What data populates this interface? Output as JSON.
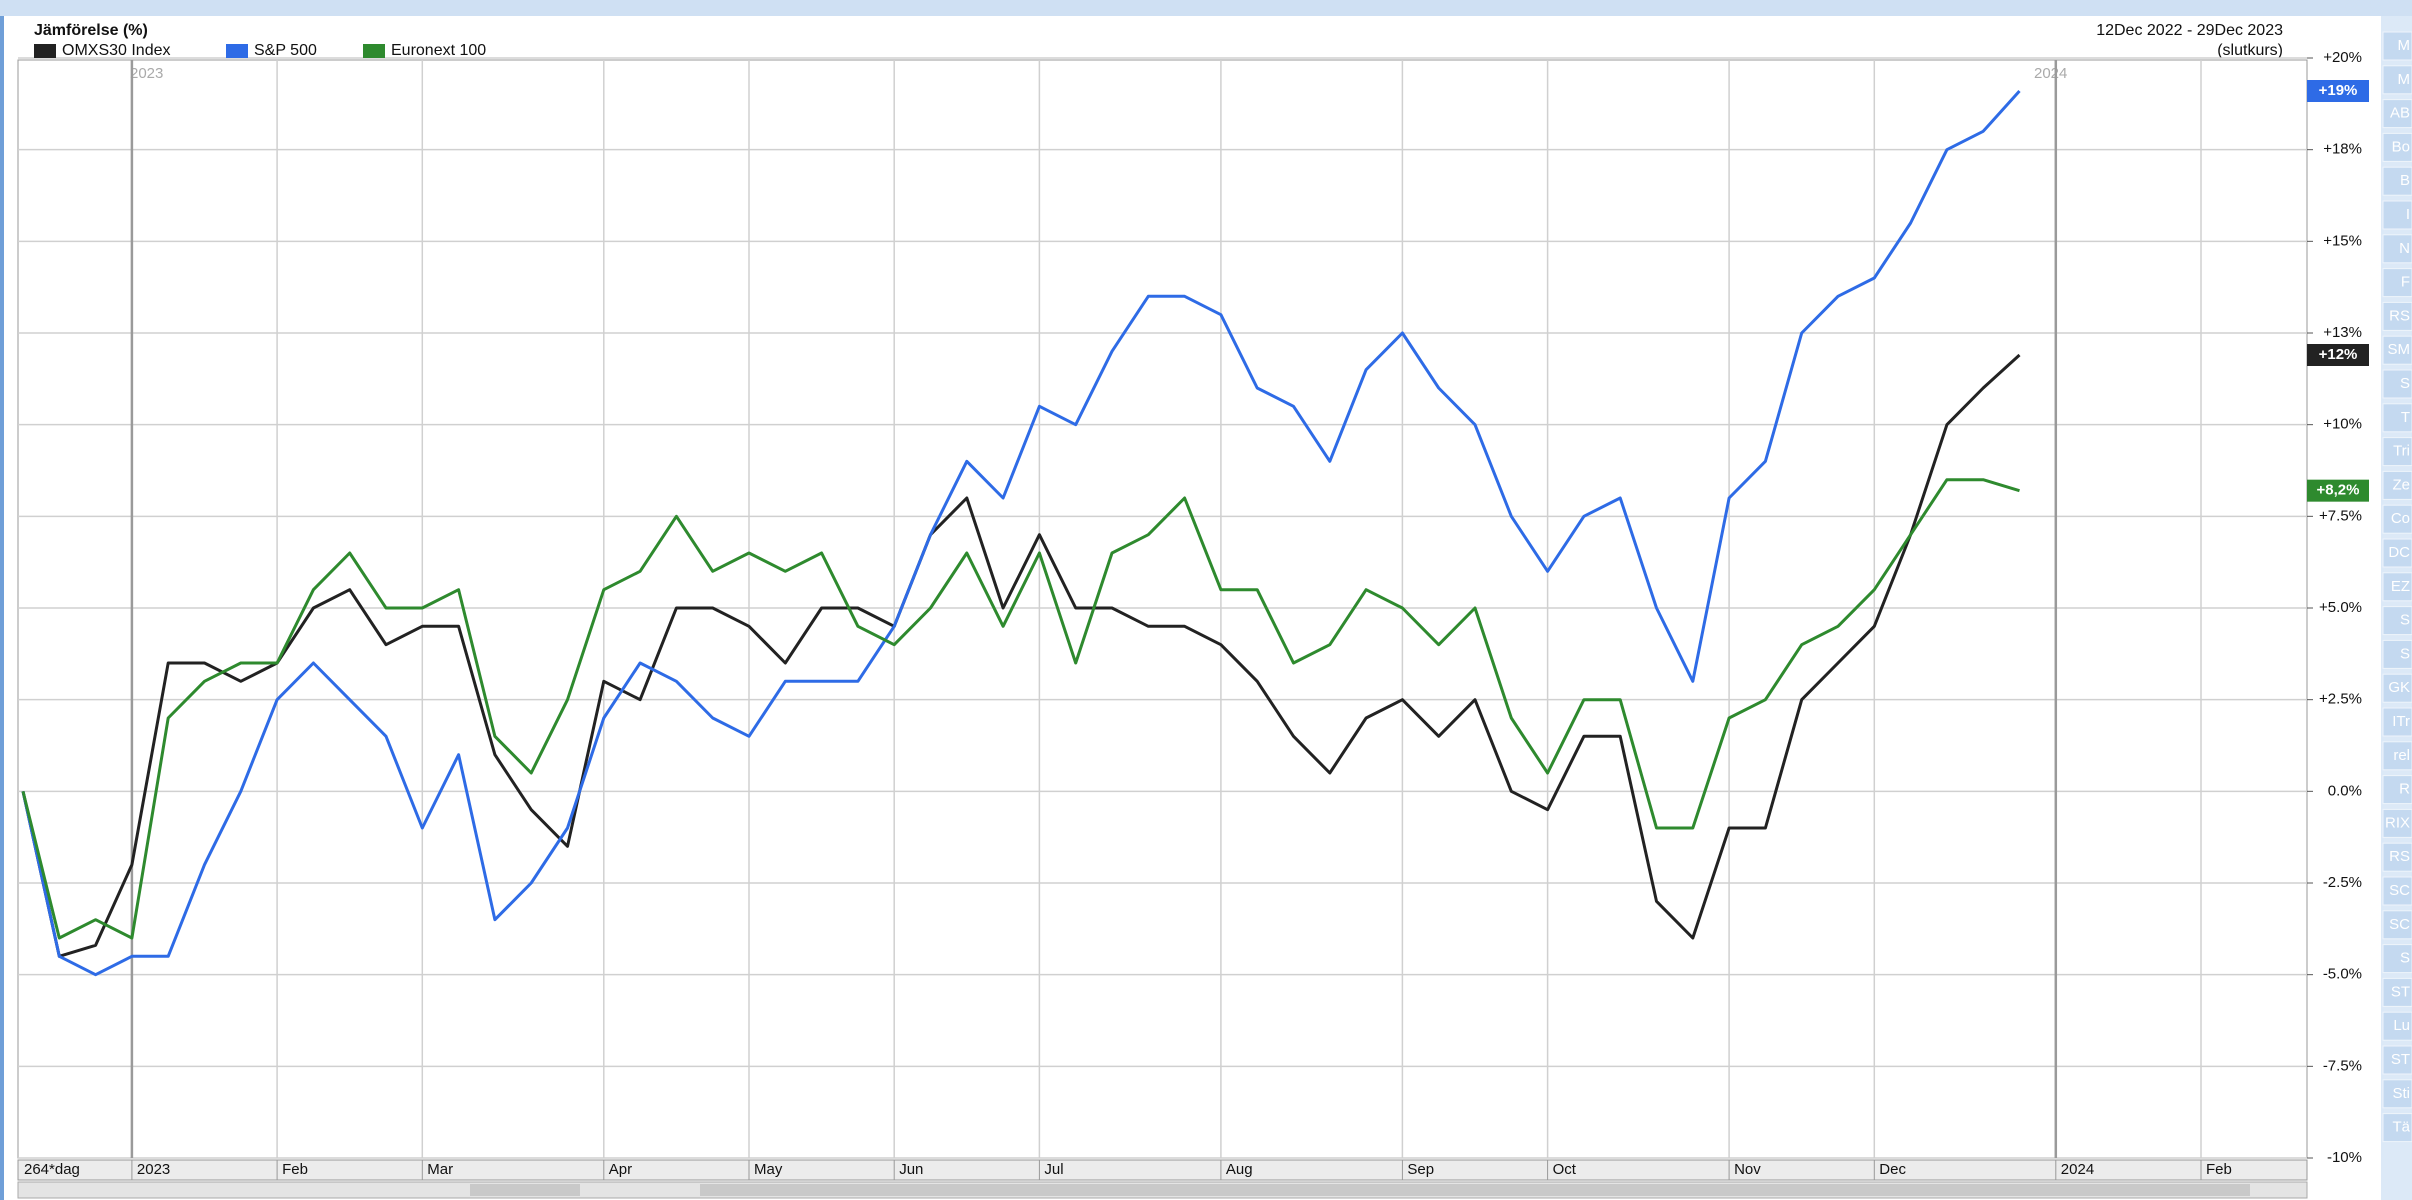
{
  "chart_data": {
    "type": "line",
    "title": "Jämförelse (%)",
    "date_range": "12Dec 2022 - 29Dec 2023",
    "price_basis": "(slutkurs)",
    "period": "264*dag",
    "year_labels": [
      "2023",
      "2024"
    ],
    "categories": [
      null,
      null,
      null,
      "2023",
      null,
      null,
      null,
      "Feb",
      null,
      null,
      null,
      "Mar",
      null,
      null,
      null,
      null,
      "Apr",
      null,
      null,
      null,
      "May",
      null,
      null,
      null,
      "Jun",
      null,
      null,
      null,
      "Jul",
      null,
      null,
      null,
      null,
      "Aug",
      null,
      null,
      null,
      null,
      "Sep",
      null,
      null,
      null,
      "Oct",
      null,
      null,
      null,
      null,
      "Nov",
      null,
      null,
      null,
      "Dec",
      null,
      null,
      null,
      null,
      "2024",
      null,
      null,
      null,
      "Feb",
      null,
      null,
      null
    ],
    "series": [
      {
        "name": "OMXS30 Index",
        "color": "#222222",
        "values": [
          0,
          -4.5,
          -4.2,
          -2.0,
          3.5,
          3.5,
          3.0,
          3.5,
          5.0,
          5.5,
          4.0,
          4.5,
          4.5,
          1.0,
          -0.5,
          -1.5,
          3.0,
          2.5,
          5.0,
          5.0,
          4.5,
          3.5,
          5.0,
          5.0,
          4.5,
          7.0,
          8.0,
          5.0,
          7.0,
          5.0,
          5.0,
          4.5,
          4.5,
          4.0,
          3.0,
          1.5,
          0.5,
          2.0,
          2.5,
          1.5,
          2.5,
          0.0,
          -0.5,
          1.5,
          1.5,
          -3.0,
          -4.0,
          -1.0,
          -1.0,
          2.5,
          3.5,
          4.5,
          7.0,
          10.0,
          11.0,
          11.9,
          null,
          null,
          null,
          null,
          null,
          null,
          null,
          null
        ],
        "value_labels": [
          null,
          null,
          null,
          null,
          null,
          null,
          null,
          null,
          null,
          null,
          null,
          null,
          null,
          null,
          null,
          null,
          null,
          null,
          null,
          null,
          null,
          null,
          null,
          null,
          null,
          null,
          null,
          null,
          null,
          null,
          null,
          null,
          null,
          null,
          null,
          null,
          null,
          null,
          null,
          null,
          null,
          null,
          null,
          null,
          null,
          null,
          null,
          null,
          null,
          null,
          null,
          null,
          null,
          null,
          null,
          "+12%",
          null,
          null,
          null,
          null,
          null,
          null,
          null,
          null
        ]
      },
      {
        "name": "S&P 500",
        "color": "#2e6be6",
        "values": [
          0,
          -4.5,
          -5.0,
          -4.5,
          -4.5,
          -2.0,
          0,
          2.5,
          3.5,
          2.5,
          1.5,
          -1.0,
          1.0,
          -3.5,
          -2.5,
          -1.0,
          2.0,
          3.5,
          3.0,
          2.0,
          1.5,
          3.0,
          3.0,
          3.0,
          4.5,
          7.0,
          9.0,
          8.0,
          10.5,
          10.0,
          12.0,
          13.5,
          13.5,
          13.0,
          11.0,
          10.5,
          9.0,
          11.5,
          12.5,
          11.0,
          10.0,
          7.5,
          6.0,
          7.5,
          8.0,
          5.0,
          3.0,
          8.0,
          9.0,
          12.5,
          13.5,
          14.0,
          15.5,
          17.5,
          18.0,
          19.1,
          null,
          null,
          null,
          null,
          null,
          null,
          null,
          null
        ],
        "value_labels": [
          null,
          null,
          null,
          null,
          null,
          null,
          null,
          null,
          null,
          null,
          null,
          null,
          null,
          null,
          null,
          null,
          null,
          null,
          null,
          null,
          null,
          null,
          null,
          null,
          null,
          null,
          null,
          null,
          null,
          null,
          null,
          null,
          null,
          null,
          null,
          null,
          null,
          null,
          null,
          null,
          null,
          null,
          null,
          null,
          null,
          null,
          null,
          null,
          null,
          null,
          null,
          null,
          null,
          null,
          null,
          "+19%",
          null,
          null,
          null,
          null,
          null,
          null,
          null,
          null
        ]
      },
      {
        "name": "Euronext 100",
        "color": "#2e8a2e",
        "values": [
          0,
          -4.0,
          -3.5,
          -4.0,
          2.0,
          3.0,
          3.5,
          3.5,
          5.5,
          6.5,
          5.0,
          5.0,
          5.5,
          1.5,
          0.5,
          2.5,
          5.5,
          6.0,
          7.5,
          6.0,
          6.5,
          6.0,
          6.5,
          4.5,
          4.0,
          5.0,
          6.5,
          4.5,
          6.5,
          3.5,
          6.5,
          7.0,
          8.0,
          5.5,
          5.5,
          3.5,
          4.0,
          5.5,
          5.0,
          4.0,
          5.0,
          2.0,
          0.5,
          2.5,
          2.5,
          -1.0,
          -1.0,
          2.0,
          2.5,
          4.0,
          4.5,
          5.5,
          7.0,
          8.5,
          8.5,
          8.2,
          null,
          null,
          null,
          null,
          null,
          null,
          null,
          null
        ],
        "value_labels": [
          null,
          null,
          null,
          null,
          null,
          null,
          null,
          null,
          null,
          null,
          null,
          null,
          null,
          null,
          null,
          null,
          null,
          null,
          null,
          null,
          null,
          null,
          null,
          null,
          null,
          null,
          null,
          null,
          null,
          null,
          null,
          null,
          null,
          null,
          null,
          null,
          null,
          null,
          null,
          null,
          null,
          null,
          null,
          null,
          null,
          null,
          null,
          null,
          null,
          null,
          null,
          null,
          null,
          null,
          null,
          "+8,2%",
          null,
          null,
          null,
          null,
          null,
          null,
          null,
          null
        ]
      }
    ],
    "ylim": [
      -10,
      20
    ],
    "yticks": [
      {
        "value": 20,
        "label": "+20%"
      },
      {
        "value": 17.5,
        "label": "+18%"
      },
      {
        "value": 15,
        "label": "+15%"
      },
      {
        "value": 12.5,
        "label": "+13%"
      },
      {
        "value": 10,
        "label": "+10%"
      },
      {
        "value": 7.5,
        "label": "+7.5%"
      },
      {
        "value": 5,
        "label": "+5.0%"
      },
      {
        "value": 2.5,
        "label": "+2.5%"
      },
      {
        "value": 0,
        "label": "0.0%"
      },
      {
        "value": -2.5,
        "label": "-2.5%"
      },
      {
        "value": -5,
        "label": "-5.0%"
      },
      {
        "value": -7.5,
        "label": "-7.5%"
      },
      {
        "value": -10,
        "label": "-10%"
      }
    ],
    "grid": true,
    "y_axis_side": "right"
  },
  "sidebar": {
    "items": [
      "M",
      "M",
      "AB",
      "Bo",
      "B",
      "I",
      "N",
      "F",
      "RS",
      "SM",
      "S",
      "T",
      "Tri",
      "Ze",
      "Co",
      "DC",
      "EZ",
      "S",
      "S",
      "GK",
      "ITr",
      "rel",
      "R",
      "RIX",
      "RS",
      "SC",
      "SC",
      "S",
      "ST",
      "Lu",
      "ST",
      "Sti",
      "Tä"
    ]
  }
}
